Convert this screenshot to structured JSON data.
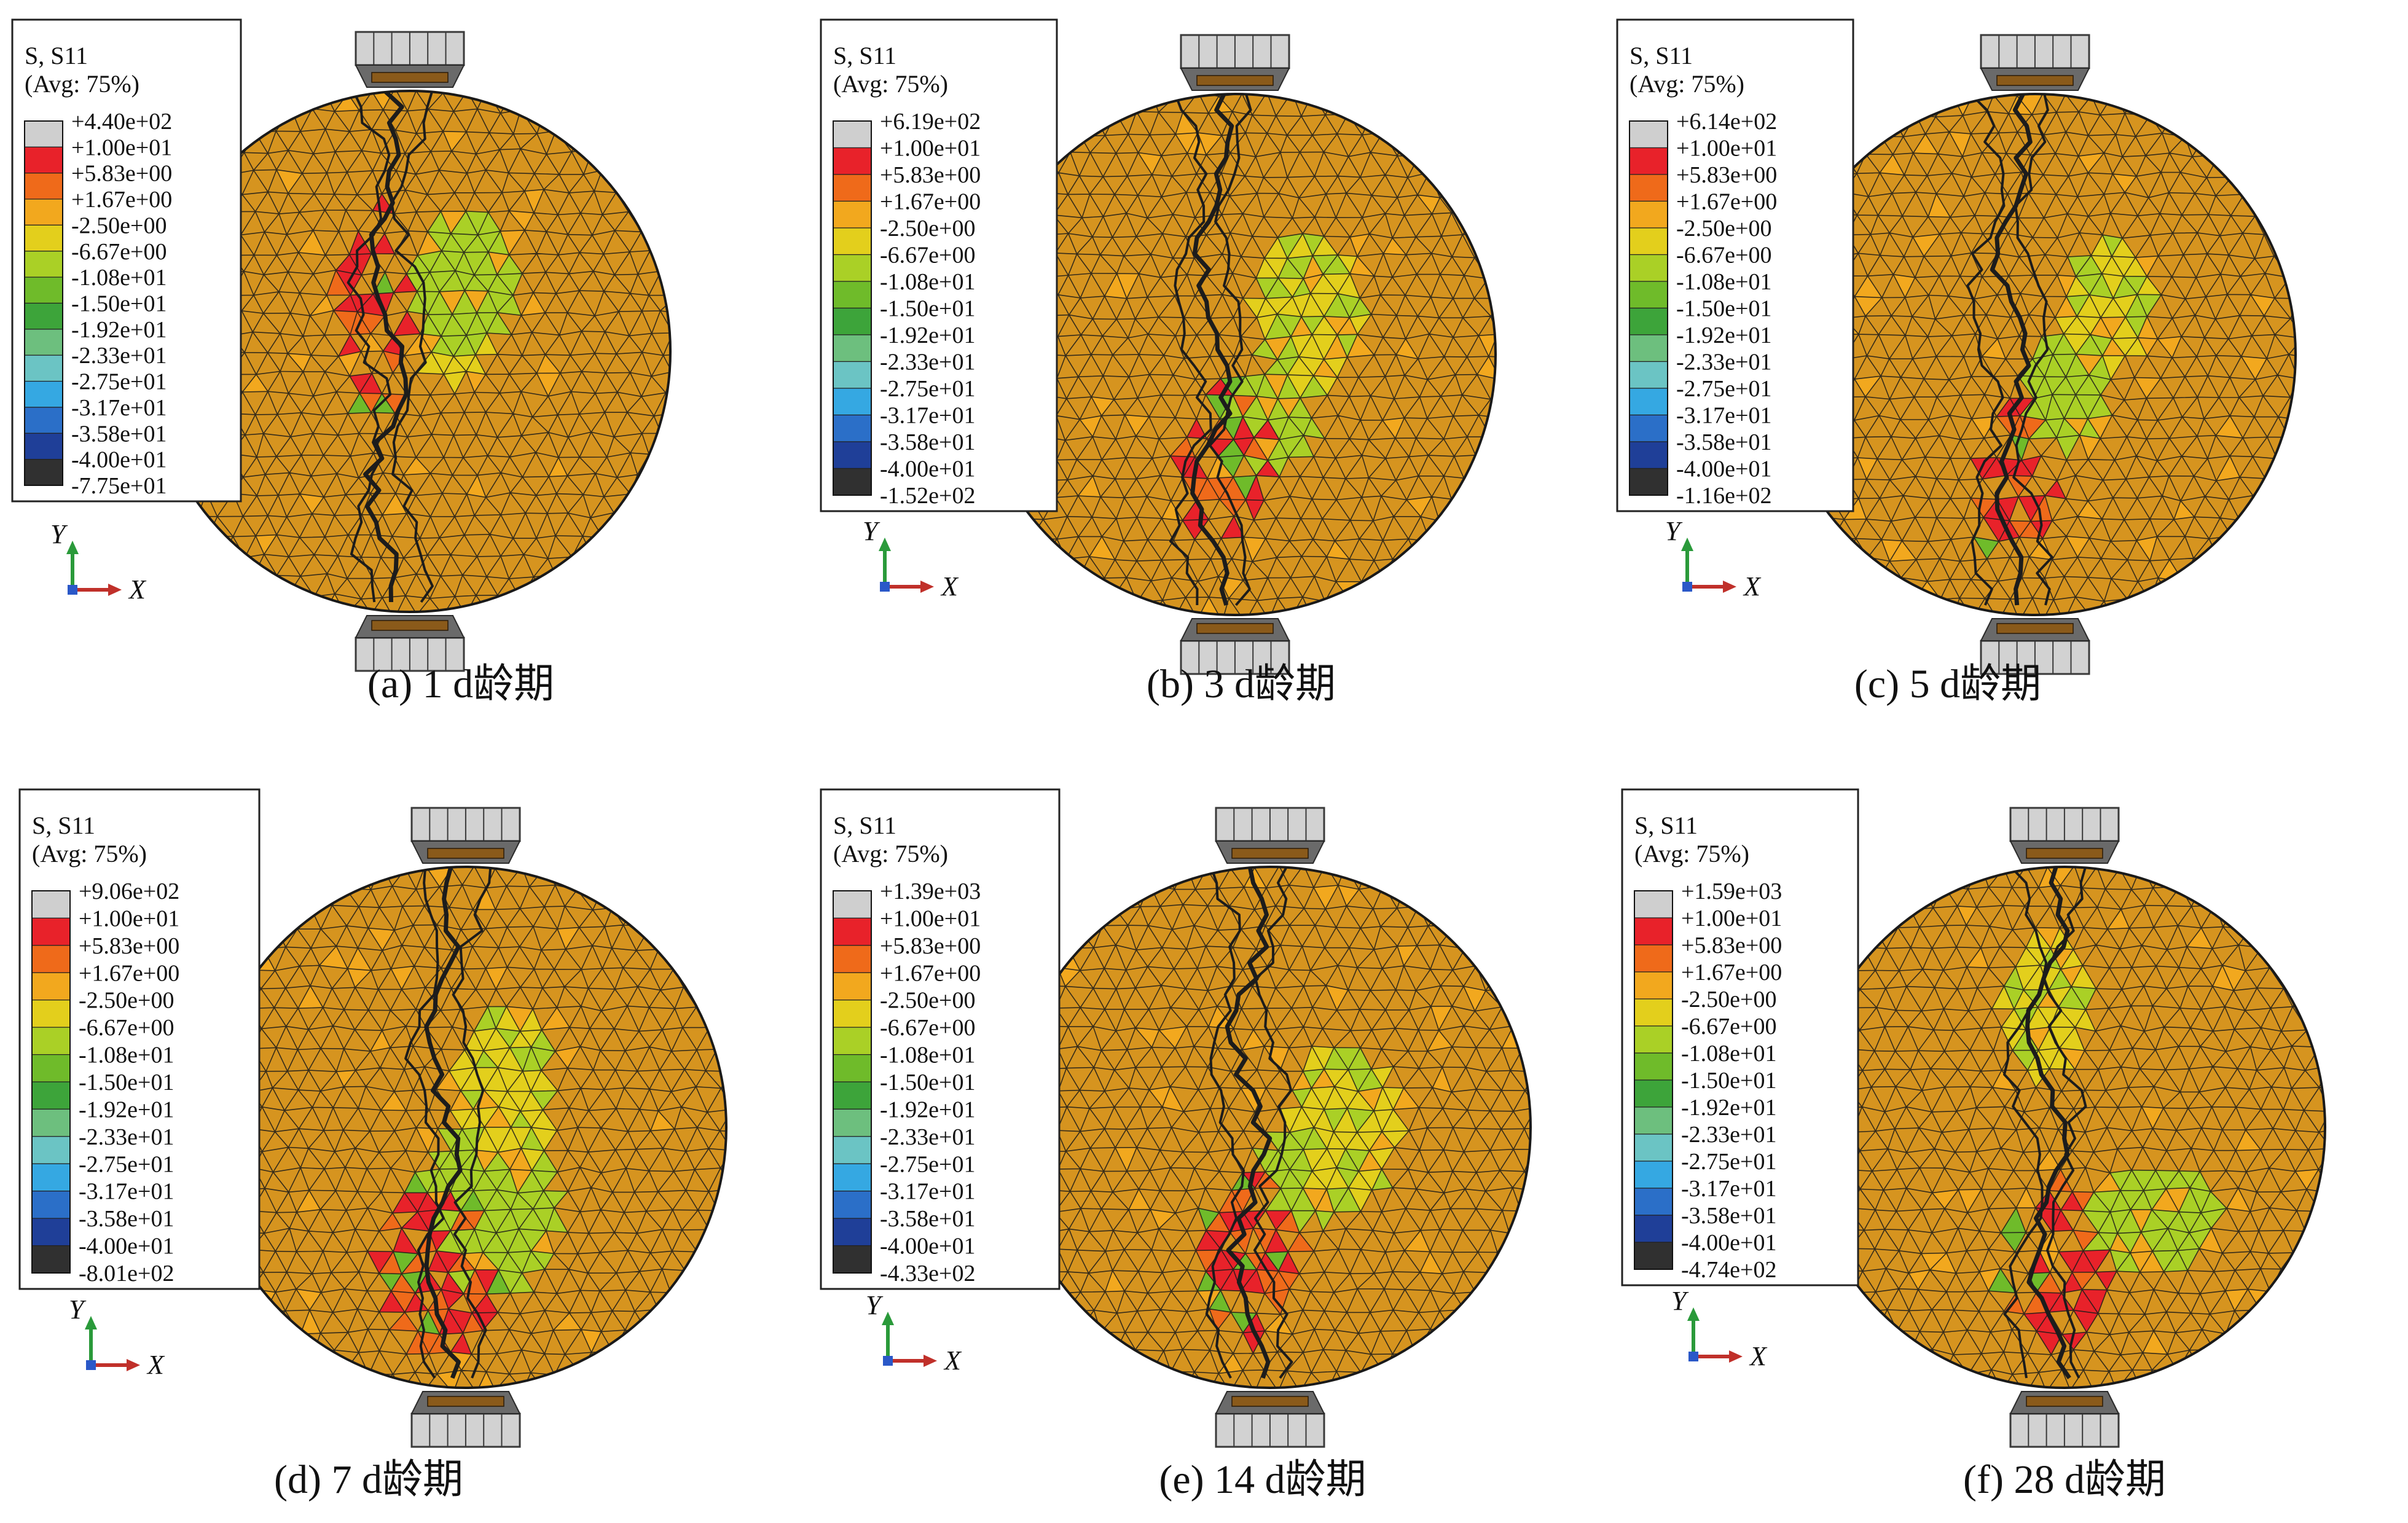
{
  "colors": {
    "bands": [
      "#cfcfcf",
      "#e8222a",
      "#ef6a1a",
      "#f2a81e",
      "#e3cf1c",
      "#aad026",
      "#6fbb2a",
      "#3da43a",
      "#6dbf7e",
      "#6bc4c4",
      "#35a8e2",
      "#2b6fc8",
      "#1f3f98",
      "#303030"
    ],
    "disk_base": "#d6941f",
    "mesh_line": "#1a1a1a",
    "axis_y": "#2a9a3a",
    "axis_x": "#c0302a",
    "axis_z": "#2a58c8"
  },
  "legend_common": {
    "header": "S, S11",
    "avg": "(Avg: 75%)",
    "shared_values": [
      "+1.00e+01",
      "+5.83e+00",
      "+1.67e+00",
      "-2.50e+00",
      "-6.67e+00",
      "-1.08e+01",
      "-1.50e+01",
      "-1.92e+01",
      "-2.33e+01",
      "-2.75e+01",
      "-3.17e+01",
      "-3.58e+01",
      "-4.00e+01"
    ]
  },
  "axis_labels": {
    "y": "Y",
    "x": "X"
  },
  "panels": [
    {
      "id": "a",
      "caption": "(a) 1 d龄期",
      "max": "+4.40e+02",
      "min": "-7.75e+01"
    },
    {
      "id": "b",
      "caption": "(b) 3 d龄期",
      "max": "+6.19e+02",
      "min": "-1.52e+02"
    },
    {
      "id": "c",
      "caption": "(c) 5 d龄期",
      "max": "+6.14e+02",
      "min": "-1.16e+02"
    },
    {
      "id": "d",
      "caption": "(d) 7 d龄期",
      "max": "+9.06e+02",
      "min": "-8.01e+02"
    },
    {
      "id": "e",
      "caption": "(e) 14 d龄期",
      "max": "+1.39e+03",
      "min": "-4.33e+02"
    },
    {
      "id": "f",
      "caption": "(f) 28 d龄期",
      "max": "+1.59e+03",
      "min": "-4.74e+02"
    }
  ]
}
